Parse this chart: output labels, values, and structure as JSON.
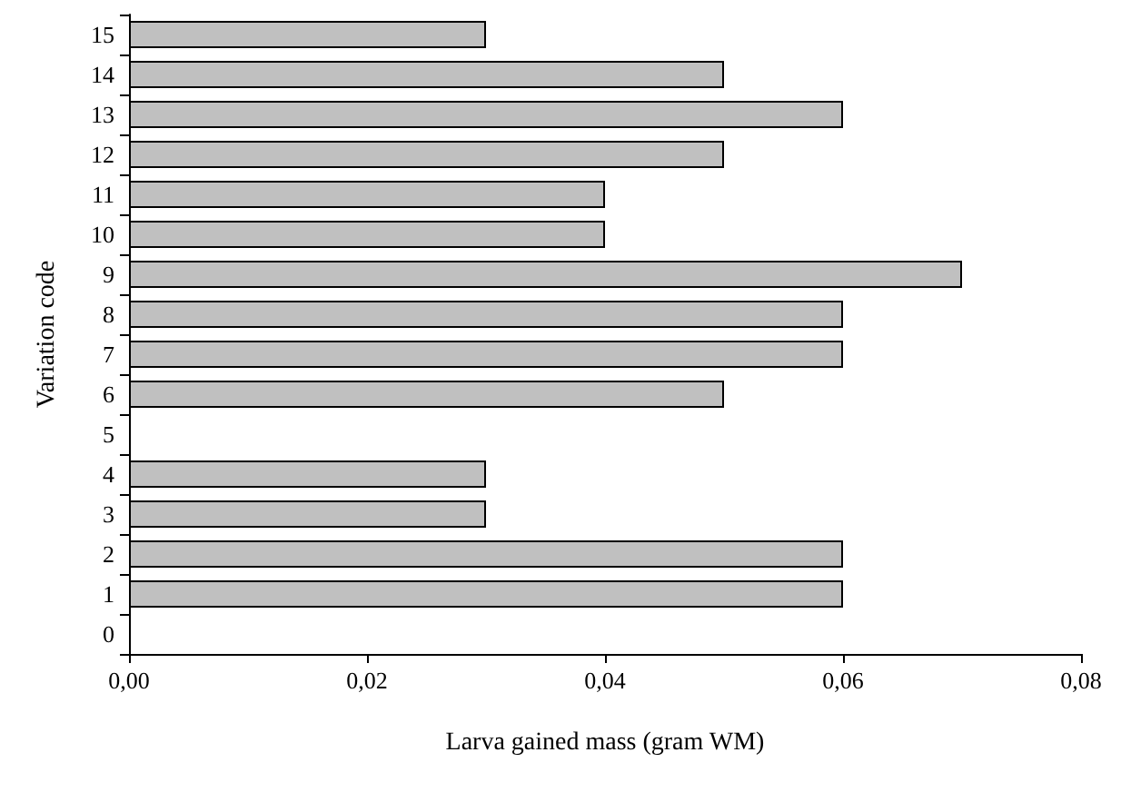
{
  "chart_data": {
    "type": "bar",
    "orientation": "horizontal",
    "xlabel": "Larva gained mass (gram WM)",
    "ylabel": "Variation code",
    "categories": [
      "15",
      "14",
      "13",
      "12",
      "11",
      "10",
      "9",
      "8",
      "7",
      "6",
      "5",
      "4",
      "3",
      "2",
      "1",
      "0"
    ],
    "values": [
      0.03,
      0.05,
      0.06,
      0.05,
      0.04,
      0.04,
      0.07,
      0.06,
      0.06,
      0.05,
      null,
      0.03,
      0.03,
      0.06,
      0.06,
      null
    ],
    "color": "#c0c0c0",
    "xlim": [
      0,
      0.08
    ],
    "xticks": [
      {
        "value": 0,
        "label": "0,00"
      },
      {
        "value": 0.02,
        "label": "0,02"
      },
      {
        "value": 0.04,
        "label": "0,04"
      },
      {
        "value": 0.06,
        "label": "0,06"
      },
      {
        "value": 0.08,
        "label": "0,08"
      }
    ],
    "grid": false
  }
}
